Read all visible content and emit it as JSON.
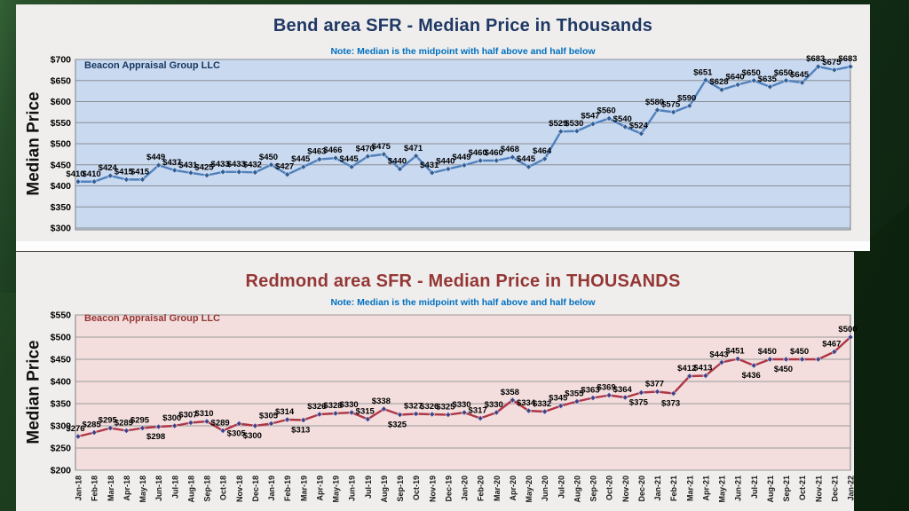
{
  "desktop": {
    "background_color": "#16331a"
  },
  "chart_data": [
    {
      "type": "line",
      "title": "Bend area SFR - Median Price in Thousands",
      "subtitle": "Note: Median is the midpoint with half above and half below",
      "brand": "Beacon Appraisal Group LLC",
      "ylabel": "Median Price",
      "ylim": [
        300,
        700
      ],
      "ytick_step": 50,
      "ytick_prefix": "$",
      "grid": true,
      "legend": "none",
      "x_axis_visible": false,
      "x": [
        "Jan-18",
        "Feb-18",
        "Mar-18",
        "Apr-18",
        "May-18",
        "Jun-18",
        "Jul-18",
        "Aug-18",
        "Sep-18",
        "Oct-18",
        "Nov-18",
        "Dec-18",
        "Jan-19",
        "Feb-19",
        "Mar-19",
        "Apr-19",
        "May-19",
        "Jun-19",
        "Jul-19",
        "Aug-19",
        "Sep-19",
        "Oct-19",
        "Nov-19",
        "Dec-19",
        "Jan-20",
        "Feb-20",
        "Mar-20",
        "Apr-20",
        "May-20",
        "Jun-20",
        "Jul-20",
        "Aug-20",
        "Sep-20",
        "Oct-20",
        "Nov-20",
        "Dec-20",
        "Jan-21",
        "Feb-21",
        "Mar-21",
        "Apr-21",
        "May-21",
        "Jun-21",
        "Jul-21",
        "Aug-21",
        "Sep-21",
        "Oct-21",
        "Nov-21",
        "Dec-21",
        "Jan-22"
      ],
      "values": [
        410,
        410,
        424,
        415,
        415,
        449,
        437,
        431,
        425,
        433,
        433,
        432,
        450,
        427,
        445,
        463,
        466,
        445,
        470,
        475,
        440,
        471,
        431,
        440,
        449,
        460,
        460,
        468,
        445,
        464,
        529,
        530,
        547,
        560,
        540,
        524,
        580,
        575,
        590,
        651,
        628,
        640,
        650,
        635,
        650,
        645,
        683,
        675,
        683
      ],
      "point_labels": [
        "$410",
        "$410",
        "$424",
        "$415",
        "$415",
        "$449",
        "$437",
        "$431",
        "$425",
        "$433",
        "$433",
        "$432",
        "$450",
        "$427",
        "$445",
        "$463",
        "$466",
        "$445",
        "$470",
        "$475",
        "$440",
        "$471",
        "$431",
        "$440",
        "$449",
        "$460",
        "$460",
        "$468",
        "$445",
        "$464",
        "$529",
        "$530",
        "$547",
        "$560",
        "$540",
        "$524",
        "$580",
        "$575",
        "$590",
        "$651",
        "$628",
        "$640",
        "$650",
        "$635",
        "$650",
        "$645",
        "$683",
        "$675",
        "$683"
      ],
      "labels_below_indices": [],
      "colors": {
        "line": "#4f81bd",
        "marker": "#2f5d94",
        "plot_bg": "#c9d9f0",
        "gridline": "#8a8f96",
        "plot_border": "#7f7f7f",
        "title": "#1f3864",
        "note": "#0070c0",
        "brand": "#17375e",
        "data_label": "#000000"
      }
    },
    {
      "type": "line",
      "title": "Redmond area SFR - Median Price in THOUSANDS",
      "subtitle": "Note:  Median is the midpoint with half above and half below",
      "brand": "Beacon Appraisal Group LLC",
      "ylabel": "Median Price",
      "ylim": [
        200,
        550
      ],
      "ytick_step": 50,
      "ytick_prefix": "$",
      "grid": true,
      "legend": "none",
      "x_axis_visible": true,
      "x": [
        "Jan-18",
        "Feb-18",
        "Mar-18",
        "Apr-18",
        "May-18",
        "Jun-18",
        "Jul-18",
        "Aug-18",
        "Sep-18",
        "Oct-18",
        "Nov-18",
        "Dec-18",
        "Jan-19",
        "Feb-19",
        "Mar-19",
        "Apr-19",
        "May-19",
        "Jun-19",
        "Jul-19",
        "Aug-19",
        "Sep-19",
        "Oct-19",
        "Nov-19",
        "Dec-19",
        "Jan-20",
        "Feb-20",
        "Mar-20",
        "Apr-20",
        "May-20",
        "Jun-20",
        "Jul-20",
        "Aug-20",
        "Sep-20",
        "Oct-20",
        "Nov-20",
        "Dec-20",
        "Jan-21",
        "Feb-21",
        "Mar-21",
        "Apr-21",
        "May-21",
        "Jun-21",
        "Jul-21",
        "Aug-21",
        "Sep-21",
        "Oct-21",
        "Nov-21",
        "Dec-21",
        "Jan-22"
      ],
      "values": [
        276,
        285,
        295,
        289,
        295,
        298,
        300,
        307,
        310,
        289,
        305,
        300,
        305,
        314,
        313,
        326,
        328,
        330,
        315,
        338,
        325,
        327,
        326,
        325,
        330,
        317,
        330,
        358,
        334,
        332,
        345,
        355,
        363,
        369,
        364,
        375,
        377,
        373,
        412,
        413,
        443,
        451,
        436,
        450,
        450,
        450,
        450,
        467,
        500
      ],
      "point_labels": [
        "$276",
        "$285",
        "$295",
        "$289",
        "$295",
        "$298",
        "$300",
        "$307",
        "$310",
        "$289",
        "$305",
        "$300",
        "$305",
        "$314",
        "$313",
        "$326",
        "$328",
        "$330",
        "$315",
        "$338",
        "$325",
        "$327",
        "$326",
        "$325",
        "$330",
        "$317",
        "$330",
        "$358",
        "$334",
        "$332",
        "$345",
        "$355",
        "$363",
        "$369",
        "$364",
        "$375",
        "$377",
        "$373",
        "$412",
        "$413",
        "$443",
        "$451",
        "$436",
        "$450",
        "$450",
        "$450",
        "",
        "$467",
        "$500"
      ],
      "labels_below_indices": [
        5,
        10,
        11,
        14,
        20,
        35,
        37,
        42,
        44
      ],
      "colors": {
        "line": "#ad3647",
        "marker": "#413f85",
        "plot_bg": "#f3dedd",
        "gridline": "#9a9a9a",
        "plot_border": "#7f7f7f",
        "title": "#943634",
        "note": "#0070c0",
        "brand": "#953734",
        "data_label": "#000000"
      }
    }
  ]
}
